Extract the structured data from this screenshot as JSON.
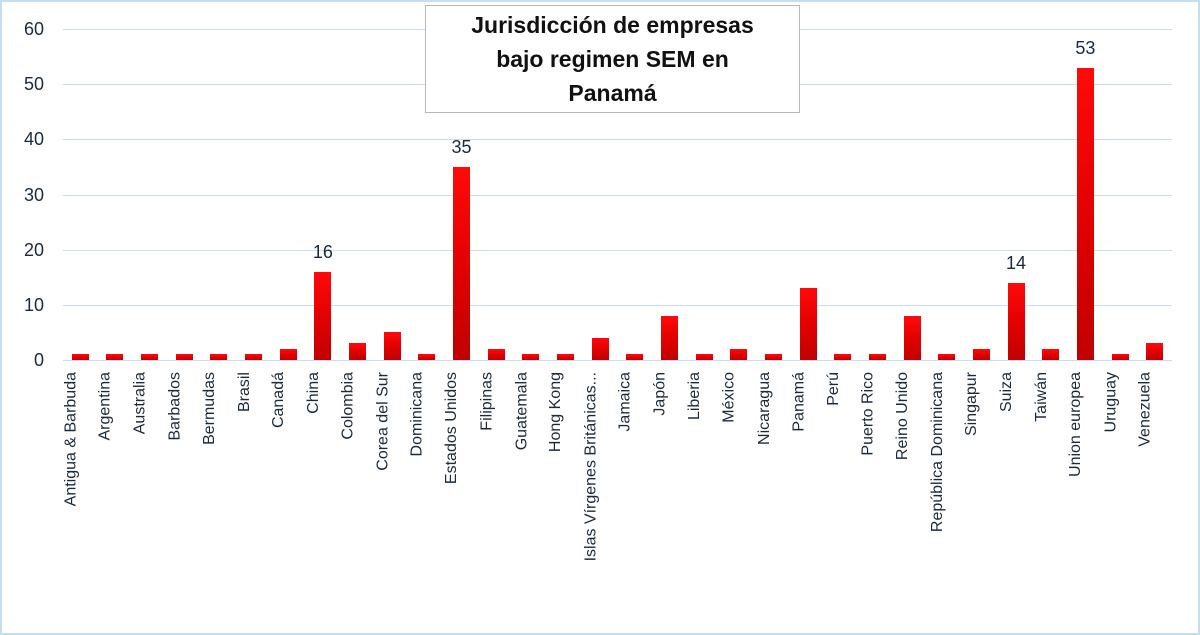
{
  "chart_data": {
    "type": "bar",
    "title": "Jurisdicción de empresas bajo regimen SEM en Panamá",
    "xlabel": "",
    "ylabel": "",
    "ylim": [
      0,
      60
    ],
    "yticks": [
      0,
      10,
      20,
      30,
      40,
      50,
      60
    ],
    "grid": true,
    "legend": "none",
    "bar_color": "#e60000",
    "categories": [
      "Antigua & Barbuda",
      "Argentina",
      "Australia",
      "Barbados",
      "Bermudas",
      "Brasil",
      "Canadá",
      "China",
      "Colombia",
      "Corea del Sur",
      "Dominicana",
      "Estados Unidos",
      "Filipinas",
      "Guatemala",
      "Hong Kong",
      "Islas Vírgenes Británicas...",
      "Jamaica",
      "Japón",
      "Liberia",
      "México",
      "Nicaragua",
      "Panamá",
      "Perú",
      "Puerto Rico",
      "Reino Unido",
      "República Dominicana",
      "Singapur",
      "Suiza",
      "Taiwán",
      "Union europea",
      "Uruguay",
      "Venezuela"
    ],
    "values": [
      1,
      1,
      1,
      1,
      1,
      1,
      2,
      16,
      3,
      5,
      1,
      35,
      2,
      1,
      1,
      4,
      1,
      8,
      1,
      2,
      1,
      13,
      1,
      1,
      8,
      1,
      2,
      14,
      2,
      53,
      1,
      3
    ],
    "data_labels": {
      "China": "16",
      "Estados Unidos": "35",
      "Suiza": "14",
      "Union europea": "53"
    }
  },
  "title": {
    "line1": "Jurisdicción de empresas",
    "line2": "bajo regimen SEM en",
    "line3": "Panamá"
  }
}
